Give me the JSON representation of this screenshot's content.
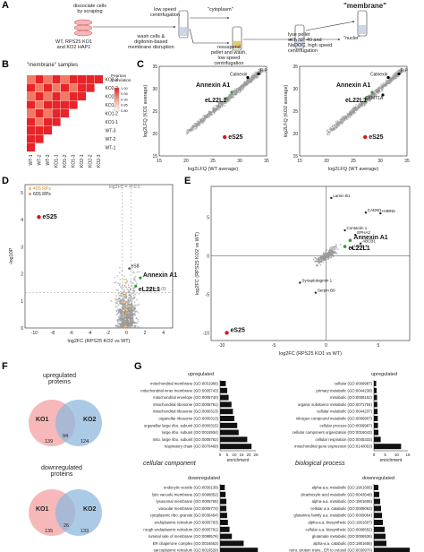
{
  "panels": {
    "A": "A",
    "B": "B",
    "C": "C",
    "D": "D",
    "E": "E",
    "F": "F",
    "G": "G"
  },
  "panelA": {
    "step1": "dissociate cells\nby scraping",
    "cells": "WT, RPS25 KO1\nand KO2 HAP1",
    "step2": "wash cells &\ndigitonin-based\nmembrane disruption",
    "step3": "low speed\ncentrifugation",
    "cytoplasm": "\"cytoplasm\"",
    "step4": "resuspend\npellet and wash,\nlow speed\ncentrifugation",
    "step5": "lyse pellet\nwith NP-40 and\nNaDOC, high speed\ncentrifugation",
    "membrane": "\"membrane\"",
    "nuclei": "\"nuclei\""
  },
  "panelB": {
    "title": "\"membrane\" samples",
    "colorbar_title": "Pearson\nCorrelation",
    "colorbar_ticks": [
      "1.00",
      "0.95",
      "0.90",
      "0.85",
      "0.80"
    ],
    "rows": [
      "KO2-3",
      "KO2-2",
      "KO2-1",
      "KO1-3",
      "KO1-2",
      "KO1-1",
      "WT-3",
      "WT-2",
      "WT-1"
    ],
    "cols": [
      "WT-1",
      "WT-2",
      "WT-3",
      "KO1-1",
      "KO1-2",
      "KO1-3",
      "KO2-1",
      "KO2-2",
      "KO2-3"
    ],
    "colors": {
      "high": "#e8232a",
      "mid": "#f07a62",
      "low": "#f9c9b4"
    }
  },
  "panelC": {
    "plots": [
      {
        "ylabel": "log2LFQ (KO1 average)",
        "xlabel": "log2LFQ (WT average)",
        "labels": [
          "Calnexin",
          "BiP",
          "Annexin A1",
          "eL22L1",
          "eS25"
        ]
      },
      {
        "ylabel": "log2LFQ (KO2 average)",
        "xlabel": "log2LFQ (WT average)",
        "labels": [
          "Calnexin",
          "BiP",
          "Annexin A1",
          "eL22L1",
          "CKMT1A",
          "eS25"
        ]
      }
    ],
    "ticks": [
      "15",
      "20",
      "25",
      "30",
      "35"
    ]
  },
  "panelD": {
    "legend": [
      "40S RPs",
      "60S RPs"
    ],
    "fc_line": "log2FC = +/-0.5",
    "p_line": "P = 0.05",
    "ylabel": "-log10P",
    "xlabel": "log2FC (RPS25 KO2 vs WT)",
    "xticks": [
      "-10",
      "-8",
      "-6",
      "-4",
      "-2",
      "0",
      "2",
      "4"
    ],
    "yticks": [
      "0",
      "1",
      "2",
      "3",
      "4",
      "5"
    ],
    "labels": [
      "eS25",
      "eS8",
      "Annexin A1",
      "eL22L1"
    ]
  },
  "panelE": {
    "ylabel": "log2FC (RPS25 KO2 vs WT)",
    "xlabel": "log2FC (RPS25 KO1 vs WT)",
    "xticks": [
      "-10",
      "-5",
      "0",
      "5"
    ],
    "yticks": [
      "-10",
      "-5",
      "0",
      "5"
    ],
    "labels": [
      "Lamin B1",
      "CADM1",
      "H3BN6",
      "Contactin 1",
      "EPHA2",
      "Annexin A1",
      "eL22L1",
      "Synaptotagmin 1",
      "Serpin B9",
      "eS25",
      "ABCB1",
      "UCHL3"
    ]
  },
  "panelF": {
    "up_title": "upregulated\nproteins",
    "down_title": "downregulated\nproteins",
    "up": {
      "ko1": "KO1",
      "ko2": "KO2",
      "only1": "139",
      "both": "94",
      "only2": "124"
    },
    "down": {
      "ko1": "KO1",
      "ko2": "KO2",
      "only1": "135",
      "both": "26",
      "only2": "133"
    }
  },
  "panelG": {
    "cc_title": "cellular component",
    "bp_title": "biological process",
    "up": "upregulated",
    "down": "downregulated",
    "xlabel": "enrichment",
    "cc_up": {
      "items": [
        "mitochondrial membrane (GO:0031966)",
        "mitochondrial inner membrane (GO:0005743)",
        "mitochondrial envelope (GO:0005740)",
        "mitochondrial ribosome (GO:0005761)",
        "mitochondrial ribosome (GO:0000313)",
        "organellar ribosome (GO:0000313)",
        "organellar large ribo. subunit (GO:0000315)",
        "large ribo. subunit (GO:0015934)",
        "mito. large ribo. subunit (GO:0005762)",
        "respiratory chain (GO:0070469)"
      ],
      "values": [
        4,
        5,
        6,
        8,
        9,
        10,
        12,
        13,
        19,
        22
      ],
      "ticks": [
        "0",
        "5",
        "10",
        "15",
        "20",
        "25"
      ]
    },
    "bp_up": {
      "items": [
        "cellular (GO:0009987)",
        "primary metabolic (GO:0044238)",
        "metabolic (GO:0008152)",
        "organic substance metabolic (GO:0071704)",
        "cellular metabolic (GO:0044237)",
        "nitrogen compound metabolic (GO:0006807)",
        "cellular process (GO:0009987)",
        "cellular component organization (GO:0016043)",
        "cellular respiration (GO:0045333)",
        "mitochondrial gene expression (GO:0140053)"
      ],
      "values": [
        1,
        1.2,
        1.4,
        1.5,
        1.6,
        1.7,
        1.8,
        2,
        3,
        12
      ],
      "ticks": [
        "0",
        "5",
        "10",
        "15"
      ]
    },
    "cc_down": {
      "items": [
        "endocytic vesicle (GO:0030139)",
        "lytic vacuole membrane (GO:0098852)",
        "lysosomal membrane (GO:0005765)",
        "vacuolar membrane (GO:0005774)",
        "cytoplasmic ribo. granule (GO:0036464)",
        "endoplasmic reticulum (GO:0005783)",
        "rough endoplasmic reticulum (GO:0005791)",
        "luminal side of membrane (GO:0098576)",
        "ER chaperone complex (GO:0034663)",
        "sarcoplasmic reticulum (GO:0016529)"
      ],
      "values": [
        6,
        7,
        8,
        8,
        9,
        10,
        12,
        15,
        30,
        48
      ],
      "ticks": [
        "0",
        "10",
        "20",
        "30",
        "40",
        "50"
      ]
    },
    "bp_down": {
      "items": [
        "alpha-a.a. metabolic (GO:1901605)",
        "dicarboxylic acid metabolic (GO:0043648)",
        "alpha-a.a. metabolic (GO:1901605)",
        "cellular a.a. catabolic (GO:0009063)",
        "glutamine family a.a. metabolic (GO:0009064)",
        "alpha-a.a. biosynthetic (GO:1901607)",
        "cellular a.a. biosynthetic (GO:0008652)",
        "glutamate metabolic (GO:0006536)",
        "alpha-a.a. catabolic (GO:1901606)",
        "retro. protein trans., ER to cytosol (GO:0030970)"
      ],
      "values": [
        5,
        6,
        7,
        8,
        9,
        10,
        12,
        13,
        14,
        40
      ],
      "ticks": [
        "0",
        "10",
        "20",
        "30",
        "40"
      ]
    }
  },
  "colors": {
    "ko1": "#f4a6a6",
    "ko2": "#8fb8de",
    "red": "#d7191c",
    "green": "#2ca02c",
    "grey": "#9a9a9a"
  }
}
